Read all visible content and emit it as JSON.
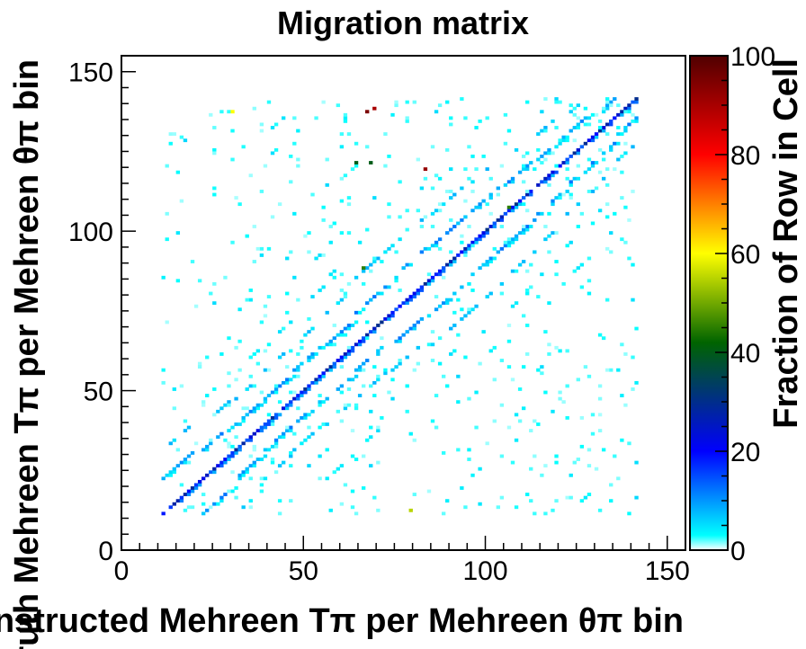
{
  "chart_data": {
    "type": "heatmap",
    "title": "Migration matrix",
    "xlabel": "Reconstructed Mehreen Tπ per Mehreen θπ bin",
    "ylabel": "Truth Mehreen Tπ per Mehreen θπ bin",
    "zlabel": "Fraction of Row in Cell",
    "xlim": [
      0,
      155
    ],
    "ylim": [
      0,
      155
    ],
    "zlim": [
      0,
      100
    ],
    "xticks": [
      0,
      50,
      100,
      150
    ],
    "yticks": [
      0,
      50,
      100,
      150
    ],
    "zticks": [
      0,
      20,
      40,
      60,
      80,
      100
    ],
    "grid": false,
    "colormap": [
      "#ffffff",
      "#00ffff",
      "#0000ff",
      "#006400",
      "#ffff00",
      "#ff0000",
      "#500000"
    ],
    "block_edges": [
      11,
      22,
      31,
      39,
      47,
      56,
      64,
      74,
      85,
      95,
      105,
      114,
      122,
      130,
      136,
      142
    ],
    "diagonal_level": 22,
    "secondary_diagonal_level": 9,
    "offdiagonal_level": 4,
    "hot_cells": [
      {
        "x": 30,
        "y": 137,
        "value": 60
      },
      {
        "x": 67,
        "y": 137,
        "value": 95
      },
      {
        "x": 69,
        "y": 138,
        "value": 90
      },
      {
        "x": 83,
        "y": 119,
        "value": 92
      },
      {
        "x": 66,
        "y": 88,
        "value": 45
      },
      {
        "x": 79,
        "y": 12,
        "value": 55
      },
      {
        "x": 106,
        "y": 107,
        "value": 45
      },
      {
        "x": 68,
        "y": 121,
        "value": 40
      },
      {
        "x": 64,
        "y": 121,
        "value": 40
      }
    ]
  }
}
